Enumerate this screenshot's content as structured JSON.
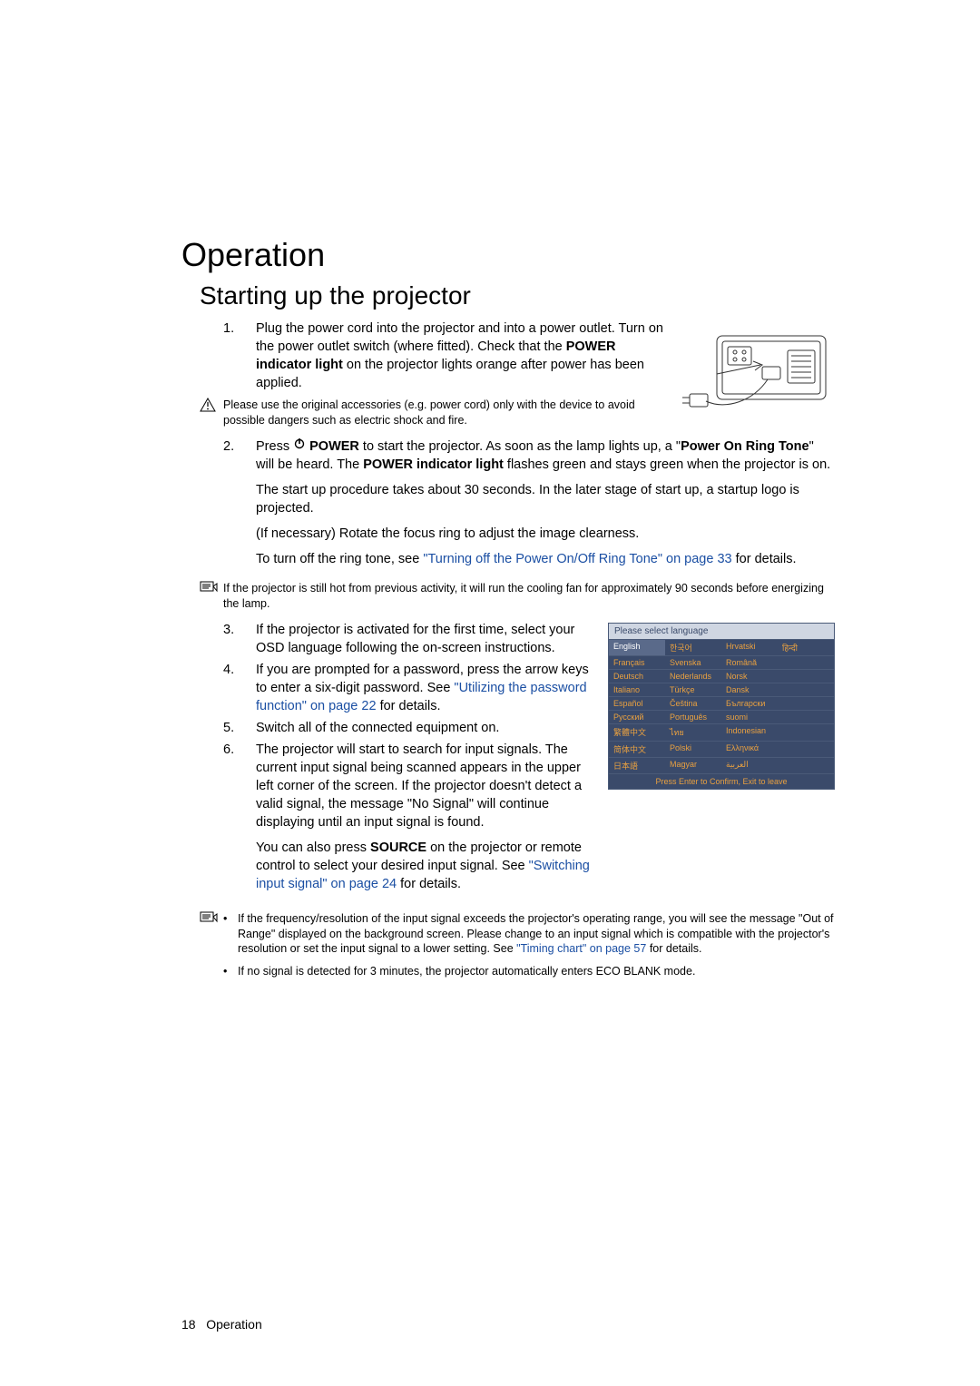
{
  "heading1": "Operation",
  "heading2": "Starting up the projector",
  "step1": {
    "num": "1.",
    "text_pre": "Plug the power cord into the projector and into a power outlet. Turn on the power outlet switch (where fitted). Check that the ",
    "bold1": "POWER indicator light",
    "text_post": " on the projector lights orange after power has been applied."
  },
  "warn1": "Please use the original accessories (e.g. power cord) only with the device to avoid possible dangers such as electric shock and fire.",
  "step2": {
    "num": "2.",
    "p1_pre": "Press ",
    "p1_power": "POWER",
    "p1_mid": " to start the projector. As soon as the lamp lights up, a \"",
    "p1_bold2": "Power On Ring Tone",
    "p1_mid2": "\" will be heard. The ",
    "p1_bold3": "POWER indicator light",
    "p1_post": " flashes green and stays green when the projector is on.",
    "p2": "The start up procedure takes about 30 seconds. In the later stage of start up, a startup logo is projected.",
    "p3": "(If necessary) Rotate the focus ring to adjust the image clearness.",
    "p4_pre": "To turn off the ring tone, see ",
    "p4_link": "\"Turning off the Power On/Off Ring Tone\" on page 33",
    "p4_post": " for details."
  },
  "note2": "If the projector is still hot from previous activity, it will run the cooling fan for approximately 90 seconds before energizing the lamp.",
  "step3": {
    "num": "3.",
    "text": "If the projector is activated for the first time, select your OSD language following the on-screen instructions."
  },
  "step4": {
    "num": "4.",
    "pre": "If you are prompted for a password, press the arrow keys to enter a six-digit password. See ",
    "link": "\"Utilizing the password function\" on page 22",
    "post": " for details."
  },
  "step5": {
    "num": "5.",
    "text": "Switch all of the connected equipment on."
  },
  "step6": {
    "num": "6.",
    "p1": "The projector will start to search for input signals. The current input signal being scanned appears in the upper left corner of the screen. If the projector doesn't detect a valid signal, the message \"No Signal\" will continue displaying until an input signal is found.",
    "p2_pre": "You can also press ",
    "p2_bold": "SOURCE",
    "p2_mid": " on the projector or remote control to select your desired input signal. See ",
    "p2_link": "\"Switching input signal\" on page 24",
    "p2_post": " for details."
  },
  "note3": {
    "b1_pre": "If the frequency/resolution of the input signal exceeds the projector's operating range, you will see the message \"Out of Range\" displayed on the background screen. Please change to an input signal which is compatible with the projector's resolution or set the input signal to a lower setting. See ",
    "b1_link": "\"Timing chart\" on page 57",
    "b1_post": " for details.",
    "b2": "If no signal is detected for 3 minutes, the projector automatically enters ECO BLANK mode."
  },
  "lang": {
    "title": "Please select language",
    "rows": [
      [
        "English",
        "한국어",
        "Hrvatski",
        "हिन्दी"
      ],
      [
        "Français",
        "Svenska",
        "Română",
        ""
      ],
      [
        "Deutsch",
        "Nederlands",
        "Norsk",
        ""
      ],
      [
        "Italiano",
        "Türkçe",
        "Dansk",
        ""
      ],
      [
        "Español",
        "Čeština",
        "Български",
        ""
      ],
      [
        "Русский",
        "Português",
        "suomi",
        ""
      ],
      [
        "繁體中文",
        "ไทย",
        "Indonesian",
        ""
      ],
      [
        "简体中文",
        "Polski",
        "Ελληνικά",
        ""
      ],
      [
        "日本語",
        "Magyar",
        "العربية",
        ""
      ]
    ],
    "footer": "Press Enter to Confirm, Exit to leave"
  },
  "footer": {
    "page": "18",
    "section": "Operation"
  },
  "colors": {
    "link": "#1b4fa3",
    "lang_bg": "#3a4a6a",
    "lang_title_bg": "#cfd6e2",
    "lang_text": "#e8a040"
  }
}
